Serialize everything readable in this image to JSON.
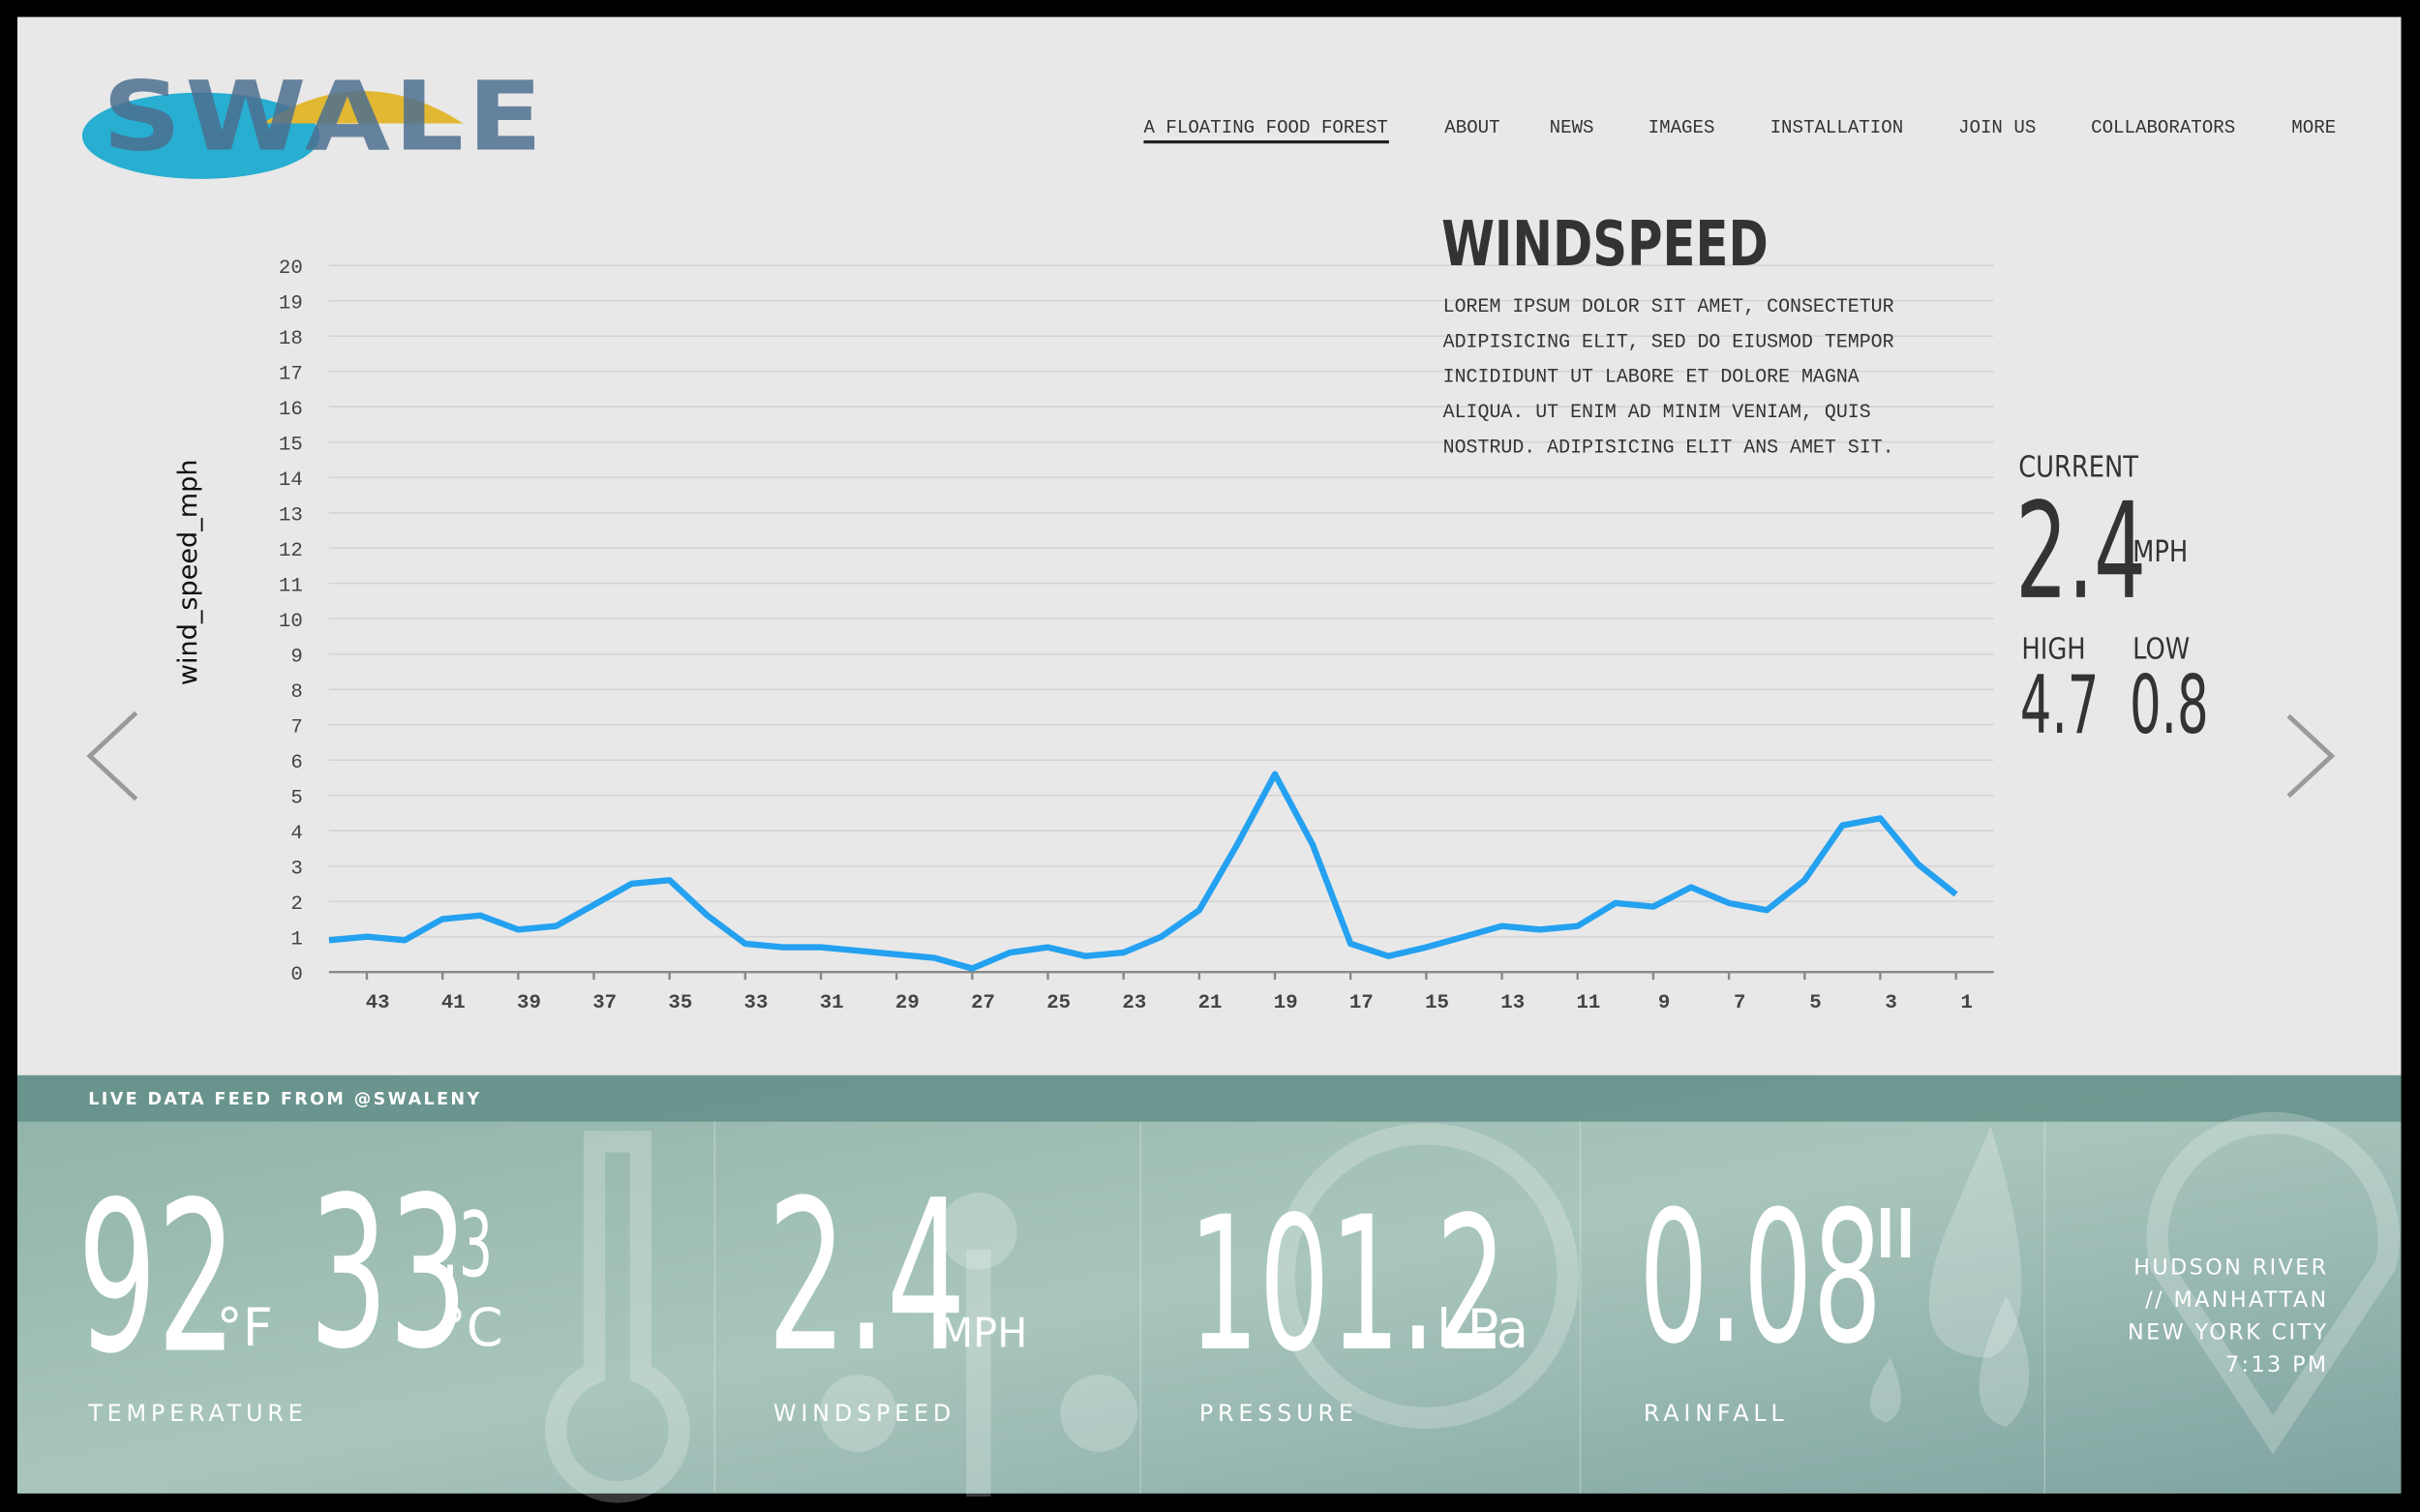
{
  "header": {
    "logo": "SWALE",
    "nav": [
      "A FLOATING FOOD FOREST",
      "ABOUT",
      "NEWS",
      "IMAGES",
      "INSTALLATION",
      "JOIN US",
      "COLLABORATORS",
      "MORE"
    ]
  },
  "chart_data": {
    "type": "line",
    "ylabel": "wind_speed_mph",
    "x": [
      44,
      43,
      42,
      41,
      40,
      39,
      38,
      37,
      36,
      35,
      34,
      33,
      32,
      31,
      30,
      29,
      28,
      27,
      26,
      25,
      24,
      23,
      22,
      21,
      20,
      19,
      18,
      17,
      16,
      15,
      14,
      13,
      12,
      11,
      10,
      9,
      8,
      7,
      6,
      5,
      4,
      3,
      2,
      1
    ],
    "values": [
      0.9,
      1.0,
      0.9,
      1.5,
      1.6,
      1.2,
      1.3,
      1.9,
      2.5,
      2.6,
      1.6,
      0.8,
      0.7,
      0.7,
      0.6,
      0.5,
      0.4,
      0.1,
      0.55,
      0.7,
      0.45,
      0.55,
      1.0,
      1.75,
      3.6,
      5.6,
      3.6,
      0.8,
      0.45,
      0.7,
      1.0,
      1.3,
      1.2,
      1.3,
      1.95,
      1.85,
      2.4,
      1.95,
      1.75,
      2.6,
      4.15,
      4.35,
      3.05,
      2.2
    ],
    "color": "#24a1f0",
    "xlim": [
      44,
      0
    ],
    "xticks": [
      43,
      41,
      39,
      37,
      35,
      33,
      31,
      29,
      27,
      25,
      23,
      21,
      19,
      17,
      15,
      13,
      11,
      9,
      7,
      5,
      3,
      1
    ],
    "ylim": [
      0,
      20
    ],
    "yticks": [
      0,
      1,
      2,
      3,
      4,
      5,
      6,
      7,
      8,
      9,
      10,
      11,
      12,
      13,
      14,
      15,
      16,
      17,
      18,
      19,
      20
    ],
    "grid": true
  },
  "info": {
    "title": "WINDSPEED",
    "body": [
      "LOREM IPSUM DOLOR SIT AMET, CONSECTETUR",
      "ADIPISICING ELIT, SED DO EIUSMOD TEMPOR",
      "INCIDIDUNT UT LABORE ET DOLORE MAGNA",
      "ALIQUA. UT ENIM AD MINIM VENIAM, QUIS",
      "NOSTRUD. ADIPISICING ELIT ANS AMET SIT."
    ],
    "current_label": "CURRENT",
    "current_value": "2.4",
    "current_unit": "MPH",
    "high_label": "HIGH",
    "high_value": "4.7",
    "low_label": "LOW",
    "low_value": "0.8"
  },
  "feed": {
    "title": "LIVE DATA FEED FROM @SWALENY",
    "temperature": {
      "f": "92",
      "f_unit": "°F",
      "c": "33",
      "c_decimal": ".3",
      "c_unit": "°C",
      "label": "TEMPERATURE"
    },
    "windspeed": {
      "value": "2.4",
      "unit": "MPH",
      "label": "WINDSPEED"
    },
    "pressure": {
      "value": "101.2",
      "unit": "kPa",
      "label": "PRESSURE"
    },
    "rainfall": {
      "value": "0.08",
      "unit": "\"",
      "label": "RAINFALL"
    },
    "location": [
      "HUDSON RIVER",
      "// MANHATTAN",
      "NEW YORK CITY",
      "7:13 PM"
    ]
  }
}
